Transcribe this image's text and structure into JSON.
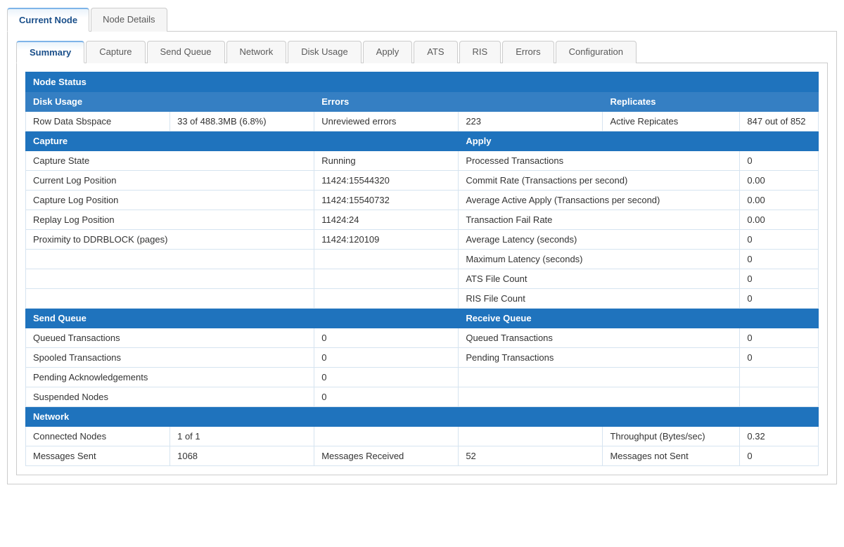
{
  "colors": {
    "header_bg": "#1f73bd",
    "header_bg_light": "#357fc3",
    "header_text": "#ffffff",
    "cell_border": "#d6e4f0",
    "tab_active_text": "#1a4f8a",
    "tab_inactive_text": "#5a5a5a",
    "tab_border": "#cccccc",
    "tab_active_top": "#7eb4e8"
  },
  "outerTabs": {
    "active": "Current Node",
    "list": [
      "Current Node",
      "Node Details"
    ]
  },
  "innerTabs": {
    "active": "Summary",
    "list": [
      "Summary",
      "Capture",
      "Send Queue",
      "Network",
      "Disk Usage",
      "Apply",
      "ATS",
      "RIS",
      "Errors",
      "Configuration"
    ]
  },
  "sections": {
    "node_status": "Node Status",
    "disk_usage": "Disk Usage",
    "errors": "Errors",
    "replicates": "Replicates",
    "capture": "Capture",
    "apply": "Apply",
    "send_queue": "Send Queue",
    "receive_queue": "Receive Queue",
    "network": "Network"
  },
  "diskUsage": {
    "row_data_sbspace_label": "Row Data Sbspace",
    "row_data_sbspace_value": "33 of 488.3MB (6.8%)"
  },
  "errors": {
    "unreviewed_label": "Unreviewed errors",
    "unreviewed_value": "223"
  },
  "replicates": {
    "active_label": "Active Repicates",
    "active_value": "847 out of 852"
  },
  "capture": {
    "state_label": "Capture State",
    "state_value": "Running",
    "current_log_label": "Current Log Position",
    "current_log_value": "11424:15544320",
    "capture_log_label": "Capture Log Position",
    "capture_log_value": "11424:15540732",
    "replay_log_label": "Replay Log Position",
    "replay_log_value": "11424:24",
    "proximity_label": "Proximity to DDRBLOCK (pages)",
    "proximity_value": "11424:120109"
  },
  "apply": {
    "processed_label": "Processed Transactions",
    "processed_value": "0",
    "commit_rate_label": "Commit Rate (Transactions per second)",
    "commit_rate_value": "0.00",
    "avg_active_label": "Average Active Apply (Transactions per second)",
    "avg_active_value": "0.00",
    "fail_rate_label": "Transaction Fail Rate",
    "fail_rate_value": "0.00",
    "avg_latency_label": "Average Latency (seconds)",
    "avg_latency_value": "0",
    "max_latency_label": "Maximum Latency (seconds)",
    "max_latency_value": "0",
    "ats_count_label": "ATS File Count",
    "ats_count_value": "0",
    "ris_count_label": "RIS File Count",
    "ris_count_value": "0"
  },
  "sendQueue": {
    "queued_label": "Queued Transactions",
    "queued_value": "0",
    "spooled_label": "Spooled Transactions",
    "spooled_value": "0",
    "pending_ack_label": "Pending Acknowledgements",
    "pending_ack_value": "0",
    "suspended_label": "Suspended Nodes",
    "suspended_value": "0"
  },
  "receiveQueue": {
    "queued_label": "Queued Transactions",
    "queued_value": "0",
    "pending_label": "Pending Transactions",
    "pending_value": "0"
  },
  "network": {
    "connected_label": "Connected Nodes",
    "connected_value": "1 of 1",
    "throughput_label": "Throughput (Bytes/sec)",
    "throughput_value": "0.32",
    "msg_sent_label": "Messages Sent",
    "msg_sent_value": "1068",
    "msg_recv_label": "Messages Received",
    "msg_recv_value": "52",
    "msg_not_sent_label": "Messages not Sent",
    "msg_not_sent_value": "0"
  }
}
